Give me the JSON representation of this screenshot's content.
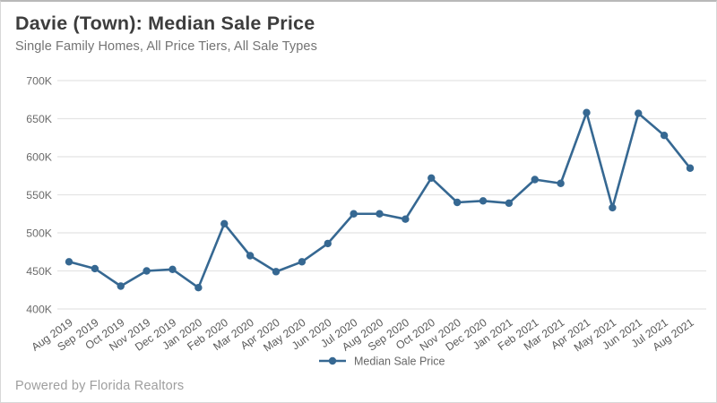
{
  "header": {
    "title": "Davie (Town): Median Sale Price",
    "subtitle": "Single Family Homes, All Price Tiers, All Sale Types"
  },
  "footer": {
    "powered_by": "Powered by Florida Realtors"
  },
  "legend": {
    "label": "Median Sale Price",
    "position": "bottom-center"
  },
  "colors": {
    "line": "#366892",
    "marker": "#366892",
    "grid": "#e4e4e4",
    "y_tick_text": "#6b6b6b",
    "x_tick_text": "#5a5a5a",
    "title_text": "#3d3d3d",
    "subtitle_text": "#737373",
    "footer_text": "#9e9e9e",
    "background": "#ffffff"
  },
  "chart_data": {
    "type": "line",
    "title": "Davie (Town): Median Sale Price",
    "subtitle": "Single Family Homes, All Price Tiers, All Sale Types",
    "xlabel": "",
    "ylabel": "",
    "grid": "horizontal",
    "legend_position": "bottom-center",
    "marker": "circle",
    "ylim": [
      400000,
      700000
    ],
    "y_ticks": [
      {
        "value": 400000,
        "label": "400K"
      },
      {
        "value": 450000,
        "label": "450K"
      },
      {
        "value": 500000,
        "label": "500K"
      },
      {
        "value": 550000,
        "label": "550K"
      },
      {
        "value": 600000,
        "label": "600K"
      },
      {
        "value": 650000,
        "label": "650K"
      },
      {
        "value": 700000,
        "label": "700K"
      }
    ],
    "categories": [
      "Aug 2019",
      "Sep 2019",
      "Oct 2019",
      "Nov 2019",
      "Dec 2019",
      "Jan 2020",
      "Feb 2020",
      "Mar 2020",
      "Apr 2020",
      "May 2020",
      "Jun 2020",
      "Jul 2020",
      "Aug 2020",
      "Sep 2020",
      "Oct 2020",
      "Nov 2020",
      "Dec 2020",
      "Jan 2021",
      "Feb 2021",
      "Mar 2021",
      "Apr 2021",
      "May 2021",
      "Jun 2021",
      "Jul 2021",
      "Aug 2021"
    ],
    "series": [
      {
        "name": "Median Sale Price",
        "values": [
          462000,
          453000,
          430000,
          450000,
          452000,
          428000,
          512000,
          470000,
          449000,
          462000,
          486000,
          525000,
          525000,
          518000,
          572000,
          540000,
          542000,
          539000,
          570000,
          565000,
          658000,
          533000,
          657000,
          628000,
          585000
        ]
      }
    ]
  }
}
